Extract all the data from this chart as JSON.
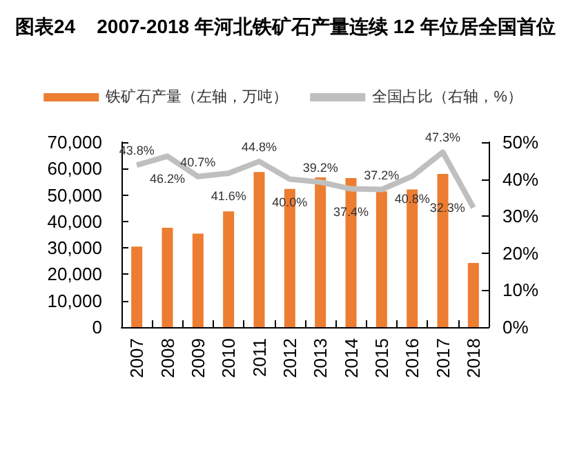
{
  "chart_data": {
    "type": "bar",
    "title": "图表24    2007-2018 年河北铁矿石产量连续 12 年位居全国首位",
    "categories": [
      "2007",
      "2008",
      "2009",
      "2010",
      "2011",
      "2012",
      "2013",
      "2014",
      "2015",
      "2016",
      "2017",
      "2018"
    ],
    "series": [
      {
        "name": "铁矿石产量（左轴，万吨）",
        "color": "#ed7d31",
        "values": [
          30500,
          37600,
          35400,
          43800,
          58700,
          52300,
          56700,
          56400,
          51400,
          52100,
          58000,
          24300
        ]
      },
      {
        "name": "全国占比（右轴，%）",
        "type": "line",
        "axis": "y2",
        "color": "#bfbfbf",
        "values": [
          43.8,
          46.2,
          40.7,
          41.6,
          44.8,
          40.0,
          39.2,
          37.4,
          37.2,
          40.8,
          47.3,
          32.3
        ],
        "value_labels": [
          "43.8%",
          "46.2%",
          "40.7%",
          "41.6%",
          "44.8%",
          "40.0%",
          "39.2%",
          "37.4%",
          "37.2%",
          "40.8%",
          "47.3%",
          "32.3%"
        ]
      }
    ],
    "ylim": [
      0,
      70000
    ],
    "yticks": [
      {
        "value": 0,
        "label": "0"
      },
      {
        "value": 10000,
        "label": "10,000"
      },
      {
        "value": 20000,
        "label": "20,000"
      },
      {
        "value": 30000,
        "label": "30,000"
      },
      {
        "value": 40000,
        "label": "40,000"
      },
      {
        "value": 50000,
        "label": "50,000"
      },
      {
        "value": 60000,
        "label": "60,000"
      },
      {
        "value": 70000,
        "label": "70,000"
      }
    ],
    "y2lim": [
      0,
      50
    ],
    "y2ticks": [
      {
        "value": 0,
        "label": "0%"
      },
      {
        "value": 10,
        "label": "10%"
      },
      {
        "value": 20,
        "label": "20%"
      },
      {
        "value": 30,
        "label": "30%"
      },
      {
        "value": 40,
        "label": "40%"
      },
      {
        "value": 50,
        "label": "50%"
      }
    ],
    "grid": false,
    "legend": "top",
    "marker": "none"
  }
}
